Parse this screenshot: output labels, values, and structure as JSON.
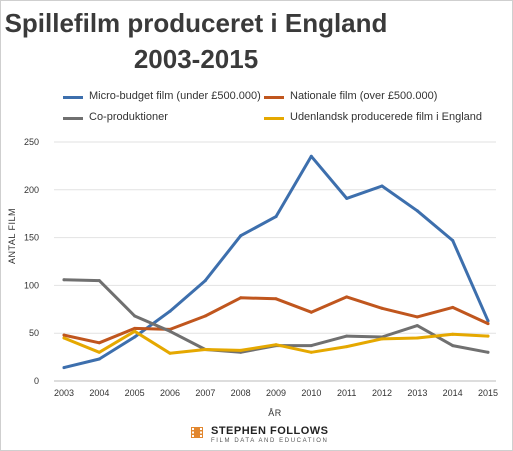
{
  "chart_data": {
    "type": "line",
    "title_line1": "Spillefilm produceret i England",
    "title_line2": "2003-2015",
    "xlabel": "ÅR",
    "ylabel": "ANTAL FILM",
    "categories": [
      "2003",
      "2004",
      "2005",
      "2006",
      "2007",
      "2008",
      "2009",
      "2010",
      "2011",
      "2012",
      "2013",
      "2014",
      "2015"
    ],
    "ylim": [
      0,
      250
    ],
    "yticks": [
      0,
      50,
      100,
      150,
      200,
      250
    ],
    "grid": true,
    "legend_position": "top",
    "series": [
      {
        "name": "Micro-budget film (under £500.000)",
        "color": "#3d6fad",
        "values": [
          14,
          23,
          46,
          73,
          105,
          152,
          172,
          235,
          191,
          204,
          178,
          147,
          63
        ]
      },
      {
        "name": "Nationale film (over £500.000)",
        "color": "#c0561e",
        "values": [
          48,
          40,
          55,
          54,
          68,
          87,
          86,
          72,
          88,
          76,
          67,
          77,
          60
        ]
      },
      {
        "name": "Co-produktioner",
        "color": "#707070",
        "values": [
          106,
          105,
          68,
          52,
          33,
          30,
          37,
          37,
          47,
          46,
          58,
          37,
          30
        ]
      },
      {
        "name": "Udenlandsk producerede film i England",
        "color": "#e5a800",
        "values": [
          45,
          30,
          52,
          29,
          33,
          32,
          38,
          30,
          36,
          44,
          45,
          49,
          47
        ]
      }
    ]
  },
  "brand": {
    "name": "STEPHEN FOLLOWS",
    "tagline": "FILM DATA AND EDUCATION"
  }
}
